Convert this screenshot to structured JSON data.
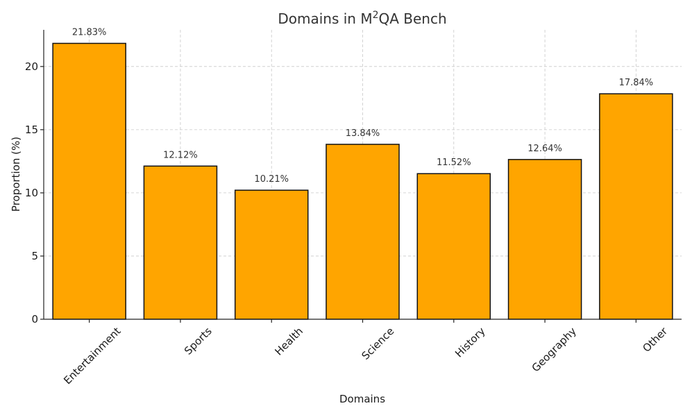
{
  "chart_data": {
    "type": "bar",
    "title": "Domains in M",
    "title_superscript": "2",
    "title_suffix": "QA Bench",
    "xlabel": "Domains",
    "ylabel": "Proportion (%)",
    "categories": [
      "Entertainment",
      "Sports",
      "Health",
      "Science",
      "History",
      "Geography",
      "Other"
    ],
    "values": [
      21.83,
      12.12,
      10.21,
      13.84,
      11.52,
      12.64,
      17.84
    ],
    "data_labels": [
      "21.83%",
      "12.12%",
      "10.21%",
      "13.84%",
      "11.52%",
      "12.64%",
      "17.84%"
    ],
    "ylim": [
      0,
      22.9
    ],
    "yticks": [
      0,
      5,
      10,
      15,
      20
    ],
    "grid": true,
    "bar_color": "#FFA500",
    "edge_color": "#111111"
  }
}
